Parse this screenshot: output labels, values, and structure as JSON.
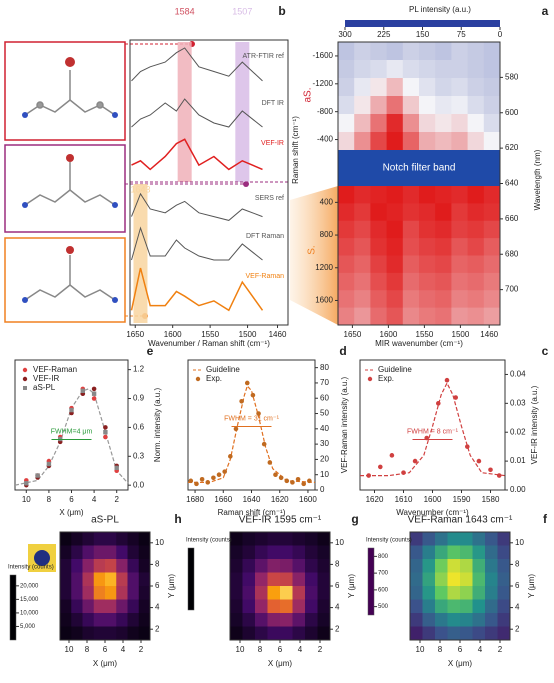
{
  "chart_data": [
    {
      "type": "heatmap_split",
      "label": "a",
      "title": "PL intensity (a.u.)",
      "colormap": "rwb",
      "clim": [
        0,
        300
      ],
      "cticks": [
        300,
        225,
        150,
        75,
        0
      ],
      "xlabel": "MIR wavenumber (cm⁻¹)",
      "xlim": [
        1670,
        1445
      ],
      "xticks": [
        1650,
        1600,
        1550,
        1500,
        1460
      ],
      "ylabel": "Raman shift (cm⁻¹)",
      "notch": "Notch filter band",
      "upper": {
        "name": "aS.",
        "ylim": [
          -1800,
          -250
        ],
        "yticks": [
          -1600,
          -1200,
          -800,
          -400
        ],
        "values": [
          [
            110,
            120,
            115,
            110,
            120,
            115,
            110,
            120,
            115,
            110
          ],
          [
            115,
            125,
            130,
            140,
            130,
            125,
            120,
            120,
            115,
            110
          ],
          [
            120,
            140,
            160,
            190,
            150,
            135,
            125,
            130,
            120,
            115
          ],
          [
            130,
            160,
            200,
            240,
            180,
            150,
            140,
            145,
            130,
            120
          ],
          [
            150,
            190,
            240,
            290,
            220,
            170,
            160,
            170,
            150,
            130
          ],
          [
            170,
            220,
            270,
            300,
            250,
            200,
            190,
            200,
            170,
            150
          ]
        ]
      },
      "lower": {
        "name": "S.",
        "ylim": [
          200,
          1900
        ],
        "yticks": [
          400,
          800,
          1200,
          1600
        ],
        "values": [
          [
            300,
            290,
            295,
            300,
            290,
            300,
            295,
            290,
            300,
            290
          ],
          [
            290,
            280,
            300,
            295,
            285,
            290,
            300,
            280,
            290,
            285
          ],
          [
            280,
            270,
            290,
            300,
            270,
            285,
            290,
            275,
            280,
            270
          ],
          [
            270,
            260,
            285,
            295,
            265,
            275,
            280,
            260,
            270,
            255
          ],
          [
            260,
            250,
            275,
            290,
            255,
            265,
            270,
            250,
            255,
            245
          ],
          [
            250,
            240,
            265,
            280,
            245,
            255,
            260,
            240,
            245,
            235
          ],
          [
            240,
            230,
            255,
            270,
            235,
            245,
            250,
            230,
            235,
            225
          ],
          [
            230,
            215,
            245,
            260,
            225,
            235,
            240,
            215,
            220,
            210
          ]
        ]
      },
      "y2label": "Wavelength (nm)",
      "y2lim": [
        560,
        720
      ],
      "y2ticks": [
        580,
        600,
        620,
        640,
        660,
        680,
        700
      ]
    },
    {
      "type": "stacked_lines",
      "label": "b",
      "xlabel": "Wavenumber / Raman shift (cm⁻¹)",
      "xlim": [
        1657,
        1446
      ],
      "xticks": [
        1650,
        1600,
        1550,
        1500,
        1460
      ],
      "x": [
        1655,
        1643,
        1630,
        1610,
        1595,
        1584,
        1565,
        1545,
        1525,
        1507,
        1480
      ],
      "bands": [
        {
          "value": 1584,
          "color": "#f0b0b8",
          "span": "upper"
        },
        {
          "value": 1507,
          "color": "#d8bce6",
          "span": "upper"
        },
        {
          "value": 1643,
          "color": "#f8d5a0",
          "span": "lower"
        }
      ],
      "series": [
        {
          "name": "ATR-FTIR ref",
          "color": "#555555",
          "values": [
            0.3,
            0.5,
            0.6,
            0.7,
            0.9,
            1.0,
            0.6,
            0.5,
            0.4,
            0.7,
            0.3
          ]
        },
        {
          "name": "DFT IR",
          "color": "#555555",
          "values": [
            0.2,
            0.4,
            0.5,
            0.8,
            0.6,
            0.9,
            0.5,
            0.3,
            0.2,
            0.6,
            0.2
          ]
        },
        {
          "name": "VEF-IR",
          "color": "#e02020",
          "values": [
            0.3,
            0.4,
            0.2,
            0.5,
            0.8,
            0.9,
            0.3,
            0.5,
            0.2,
            0.4,
            0.2
          ]
        },
        {
          "name": "SERS ref",
          "color": "#555555",
          "values": [
            0.3,
            0.9,
            0.5,
            0.4,
            0.6,
            0.7,
            0.4,
            0.3,
            0.2,
            0.5,
            0.3
          ]
        },
        {
          "name": "DFT Raman",
          "color": "#555555",
          "values": [
            0.2,
            1.0,
            0.3,
            0.3,
            0.7,
            0.5,
            0.3,
            0.2,
            0.2,
            0.6,
            0.2
          ]
        },
        {
          "name": "VEF-Raman",
          "color": "#f08010",
          "values": [
            0.1,
            1.0,
            0.2,
            0.2,
            0.5,
            0.4,
            0.2,
            0.3,
            0.1,
            0.7,
            0.1
          ]
        }
      ]
    },
    {
      "type": "scatter",
      "label": "c",
      "xlabel": "Wavenumber (cm⁻¹)",
      "ylabel": "VEF-IR intensity (a.u.)",
      "annotation": "FWHM = 8 cm⁻¹",
      "xlim": [
        1625,
        1575
      ],
      "xticks": [
        1620,
        1610,
        1600,
        1590,
        1580
      ],
      "ylim": [
        0,
        0.045
      ],
      "yticks": [
        {
          "value": 0,
          "label": "0.00"
        },
        0.01,
        0.02,
        0.03,
        0.04
      ],
      "series": [
        {
          "name": "Guideline",
          "color": "#d04040",
          "style": "dashed",
          "x": [
            1625,
            1615,
            1608,
            1603,
            1600,
            1597,
            1595,
            1593,
            1590,
            1587,
            1583,
            1575
          ],
          "values": [
            0.005,
            0.005,
            0.006,
            0.012,
            0.022,
            0.033,
            0.037,
            0.033,
            0.022,
            0.012,
            0.006,
            0.005
          ]
        },
        {
          "name": "Exp.",
          "color": "#d04040",
          "style": "points",
          "x": [
            1622,
            1618,
            1614,
            1610,
            1606,
            1602,
            1598,
            1595,
            1592,
            1588,
            1584,
            1580,
            1577
          ],
          "values": [
            0.005,
            0.008,
            0.012,
            0.006,
            0.01,
            0.018,
            0.03,
            0.038,
            0.032,
            0.015,
            0.01,
            0.007,
            0.005
          ]
        }
      ]
    },
    {
      "type": "scatter",
      "label": "d",
      "xlabel": "Raman shift (cm⁻¹)",
      "ylabel": "VEF-Raman intensity (a.u.)",
      "annotation": "FWHM = 31 cm⁻¹",
      "xlim": [
        1685,
        1595
      ],
      "xticks": [
        1680,
        1660,
        1640,
        1620,
        1600
      ],
      "ylim": [
        0,
        85
      ],
      "yticks": [
        0,
        10,
        20,
        30,
        40,
        50,
        60,
        70,
        80
      ],
      "series": [
        {
          "name": "Guideline",
          "color": "#e07020",
          "style": "dashed",
          "x": [
            1685,
            1670,
            1660,
            1655,
            1650,
            1645,
            1643,
            1640,
            1635,
            1630,
            1625,
            1615,
            1595
          ],
          "values": [
            5,
            5,
            8,
            20,
            42,
            62,
            68,
            65,
            48,
            28,
            14,
            6,
            5
          ]
        },
        {
          "name": "Exp.",
          "color": "#c06a20",
          "style": "points",
          "x": [
            1683,
            1679,
            1675,
            1671,
            1667,
            1663,
            1659,
            1655,
            1651,
            1647,
            1643,
            1639,
            1635,
            1631,
            1627,
            1623,
            1619,
            1615,
            1611,
            1607,
            1603,
            1599
          ],
          "values": [
            6,
            4,
            7,
            5,
            8,
            10,
            12,
            22,
            40,
            58,
            70,
            62,
            50,
            30,
            18,
            10,
            8,
            6,
            5,
            7,
            4,
            6
          ]
        }
      ]
    },
    {
      "type": "scatter",
      "label": "e",
      "xlabel": "X (μm)",
      "ylabel": "Norm. intensity (a.u.)",
      "annotation": "FWHM=4 μm",
      "xlim": [
        11,
        1
      ],
      "xticks": [
        10,
        8,
        6,
        4,
        2
      ],
      "ylim": [
        -0.05,
        1.3
      ],
      "yticks": [
        {
          "value": 0,
          "label": "0.0"
        },
        0.3,
        0.6,
        0.9,
        1.2
      ],
      "series": [
        {
          "color": "#999999",
          "style": "dashed",
          "x": [
            11,
            9,
            8,
            7,
            6,
            5,
            4.5,
            4,
            3,
            2,
            1
          ],
          "values": [
            0,
            0.05,
            0.2,
            0.45,
            0.8,
            0.98,
            1.0,
            0.95,
            0.55,
            0.15,
            0.02
          ]
        },
        {
          "name": "VEF-Raman",
          "color": "#e04040",
          "style": "points",
          "x": [
            10,
            9,
            8,
            7,
            6,
            5,
            4,
            3,
            2
          ],
          "values": [
            0.05,
            0.1,
            0.25,
            0.5,
            0.8,
            1.0,
            0.9,
            0.5,
            0.15
          ]
        },
        {
          "name": "VEF-IR",
          "color": "#8a2020",
          "style": "points",
          "x": [
            10,
            9,
            8,
            7,
            6,
            5,
            4,
            3,
            2
          ],
          "values": [
            0.0,
            0.08,
            0.2,
            0.45,
            0.75,
            0.95,
            1.0,
            0.6,
            0.2
          ]
        },
        {
          "name": "aS-PL",
          "color": "#888888",
          "style": "squares",
          "x": [
            10,
            9,
            8,
            7,
            6,
            5,
            4,
            3,
            2
          ],
          "values": [
            0.02,
            0.1,
            0.22,
            0.48,
            0.78,
            0.98,
            0.95,
            0.55,
            0.18
          ]
        }
      ]
    },
    {
      "type": "heatmap",
      "label": "h",
      "title": "aS-PL",
      "colormap": "inferno",
      "clim": [
        0,
        24000
      ],
      "cbar_label": "Intensity (counts)",
      "cticks": [
        {
          "value": 5000,
          "label": "5,000"
        },
        {
          "value": 10000,
          "label": "10,000"
        },
        {
          "value": 15000,
          "label": "15,000"
        },
        {
          "value": 20000,
          "label": "20,000"
        }
      ],
      "xlabel": "X (μm)",
      "ylabel": "Y (μm)",
      "xlim": [
        11,
        1
      ],
      "xticks": [
        10,
        8,
        6,
        4,
        2
      ],
      "ylim": [
        11,
        1
      ],
      "yticks": [
        10,
        8,
        6,
        4,
        2
      ],
      "values": [
        [
          1000,
          2000,
          3000,
          4000,
          4000,
          3000,
          2000,
          1000
        ],
        [
          2000,
          4000,
          7000,
          9000,
          9000,
          6000,
          3000,
          1500
        ],
        [
          3000,
          6000,
          11000,
          15000,
          16000,
          11000,
          5000,
          2000
        ],
        [
          3000,
          7000,
          14000,
          21000,
          22000,
          15000,
          7000,
          3000
        ],
        [
          3000,
          7000,
          13000,
          20000,
          21000,
          14000,
          7000,
          2500
        ],
        [
          2000,
          5000,
          9000,
          13000,
          13000,
          9000,
          5000,
          2000
        ],
        [
          1500,
          3000,
          5000,
          7000,
          7000,
          5000,
          3000,
          1500
        ],
        [
          1000,
          1500,
          2500,
          3000,
          3000,
          2500,
          1500,
          1000
        ]
      ]
    },
    {
      "type": "heatmap",
      "label": "g",
      "title": "VEF-IR 1595 cm⁻¹",
      "colormap": "inferno",
      "clim": [
        0,
        90
      ],
      "cbar_label": "Intensity (counts)",
      "xlabel": "X (μm)",
      "ylabel": "Y (μm)",
      "xlim": [
        11,
        1
      ],
      "xticks": [
        10,
        8,
        6,
        4,
        2
      ],
      "ylim": [
        11,
        1
      ],
      "yticks": [
        10,
        8,
        6,
        4,
        2
      ],
      "values": [
        [
          5,
          8,
          10,
          12,
          12,
          10,
          8,
          5
        ],
        [
          8,
          12,
          18,
          22,
          22,
          18,
          12,
          8
        ],
        [
          10,
          18,
          30,
          40,
          38,
          28,
          16,
          10
        ],
        [
          12,
          22,
          45,
          62,
          60,
          42,
          22,
          12
        ],
        [
          12,
          25,
          52,
          80,
          85,
          55,
          25,
          12
        ],
        [
          10,
          22,
          45,
          70,
          72,
          48,
          22,
          10
        ],
        [
          8,
          15,
          28,
          40,
          42,
          30,
          15,
          8
        ],
        [
          5,
          10,
          15,
          20,
          20,
          15,
          10,
          5
        ]
      ]
    },
    {
      "type": "heatmap",
      "label": "f",
      "title": "VEF-Raman 1643 cm⁻¹",
      "colormap": "viridis",
      "clim": [
        450,
        850
      ],
      "cbar_label": "Intensity (counts)",
      "cticks": [
        500,
        600,
        700,
        800
      ],
      "xlabel": "X (μm)",
      "ylabel": "Y (μm)",
      "xlim": [
        11,
        1
      ],
      "xticks": [
        10,
        8,
        6,
        4,
        2
      ],
      "ylim": [
        11,
        1
      ],
      "yticks": [
        10,
        8,
        6,
        4,
        2
      ],
      "values": [
        [
          520,
          560,
          600,
          640,
          640,
          600,
          560,
          520
        ],
        [
          560,
          620,
          690,
          740,
          720,
          660,
          590,
          540
        ],
        [
          580,
          660,
          760,
          820,
          800,
          700,
          610,
          560
        ],
        [
          590,
          680,
          780,
          840,
          820,
          720,
          630,
          570
        ],
        [
          580,
          660,
          750,
          800,
          780,
          700,
          620,
          560
        ],
        [
          550,
          620,
          690,
          720,
          710,
          650,
          590,
          540
        ],
        [
          520,
          570,
          610,
          640,
          630,
          600,
          560,
          520
        ],
        [
          490,
          520,
          550,
          570,
          560,
          540,
          520,
          500
        ]
      ]
    }
  ]
}
